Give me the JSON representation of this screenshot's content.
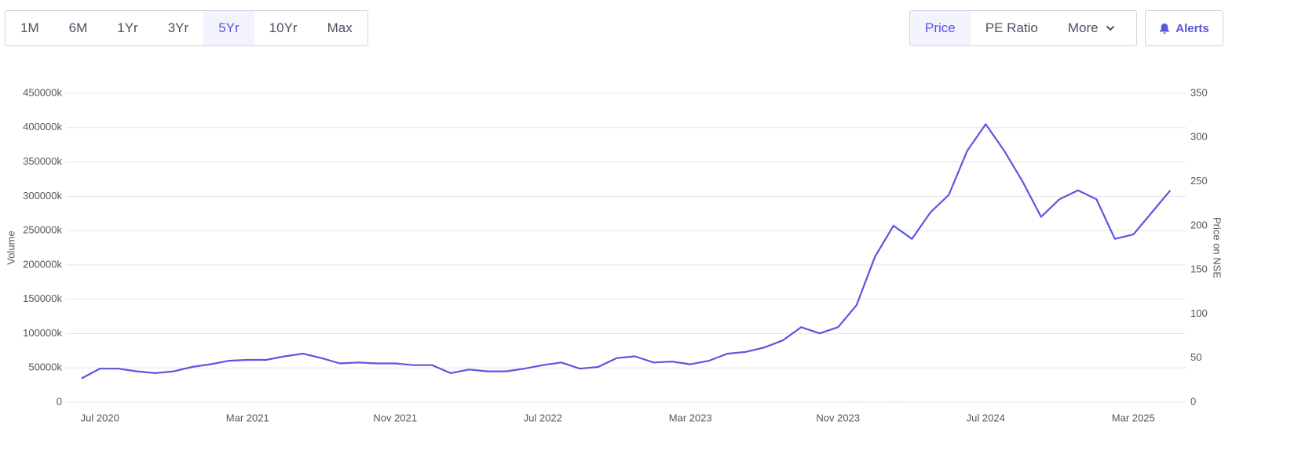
{
  "controls": {
    "ranges": [
      "1M",
      "6M",
      "1Yr",
      "3Yr",
      "5Yr",
      "10Yr",
      "Max"
    ],
    "active_range": 4,
    "views": [
      "Price",
      "PE Ratio",
      "More"
    ],
    "active_view": 0,
    "alerts": "Alerts"
  },
  "chart_data": {
    "type": "bar",
    "categories": [
      null,
      "Jul 2020",
      null,
      null,
      null,
      null,
      null,
      null,
      null,
      "Mar 2021",
      null,
      null,
      null,
      null,
      null,
      null,
      null,
      "Nov 2021",
      null,
      null,
      null,
      null,
      null,
      null,
      null,
      "Jul 2022",
      null,
      null,
      null,
      null,
      null,
      null,
      null,
      "Mar 2023",
      null,
      null,
      null,
      null,
      null,
      null,
      null,
      "Nov 2023",
      null,
      null,
      null,
      null,
      null,
      null,
      null,
      "Jul 2024",
      null,
      null,
      null,
      null,
      null,
      null,
      null,
      "Mar 2025",
      null,
      null
    ],
    "series": [
      {
        "type": "bar",
        "axis": "y",
        "color": "#bfd4f6",
        "values": [
          20,
          40,
          15,
          10,
          10,
          5,
          12,
          20,
          30,
          15,
          20,
          40,
          35,
          15,
          12,
          10,
          15,
          18,
          10,
          8,
          12,
          8,
          12,
          15,
          8,
          8,
          12,
          10,
          15,
          120,
          90,
          25,
          15,
          15,
          45,
          60,
          30,
          55,
          70,
          150,
          80,
          60,
          300,
          180,
          280,
          100,
          70,
          110,
          100,
          150,
          50,
          40,
          30,
          40,
          40,
          60,
          40,
          40,
          40,
          40
        ]
      },
      {
        "type": "line",
        "axis": "y2",
        "color": "#5b55e0",
        "values": [
          27,
          38,
          38,
          35,
          33,
          35,
          40,
          43,
          47,
          48,
          48,
          52,
          55,
          50,
          44,
          45,
          44,
          44,
          42,
          42,
          33,
          37,
          35,
          35,
          38,
          42,
          45,
          38,
          40,
          50,
          52,
          45,
          46,
          43,
          47,
          55,
          57,
          62,
          70,
          85,
          78,
          85,
          110,
          165,
          200,
          185,
          215,
          235,
          285,
          315,
          285,
          250,
          210,
          230,
          240,
          230,
          185,
          190,
          215,
          240
        ]
      }
    ],
    "y_label": "Volume",
    "y2_label": "Price on NSE",
    "ylim": [
      0,
      450000
    ],
    "yticks": [
      0,
      {
        "value": 50000,
        "label": "50000k"
      },
      {
        "value": 100000,
        "label": "100000k"
      },
      {
        "value": 150000,
        "label": "150000k"
      },
      {
        "value": 200000,
        "label": "200000k"
      },
      {
        "value": 250000,
        "label": "250000k"
      },
      {
        "value": 300000,
        "label": "300000k"
      },
      {
        "value": 350000,
        "label": "350000k"
      },
      {
        "value": 400000,
        "label": "400000k"
      },
      {
        "value": 450000,
        "label": "450000k"
      }
    ],
    "y2lim": [
      0,
      350
    ],
    "y2ticks": [
      0,
      50,
      100,
      150,
      200,
      250,
      300,
      350
    ],
    "grid": true
  }
}
